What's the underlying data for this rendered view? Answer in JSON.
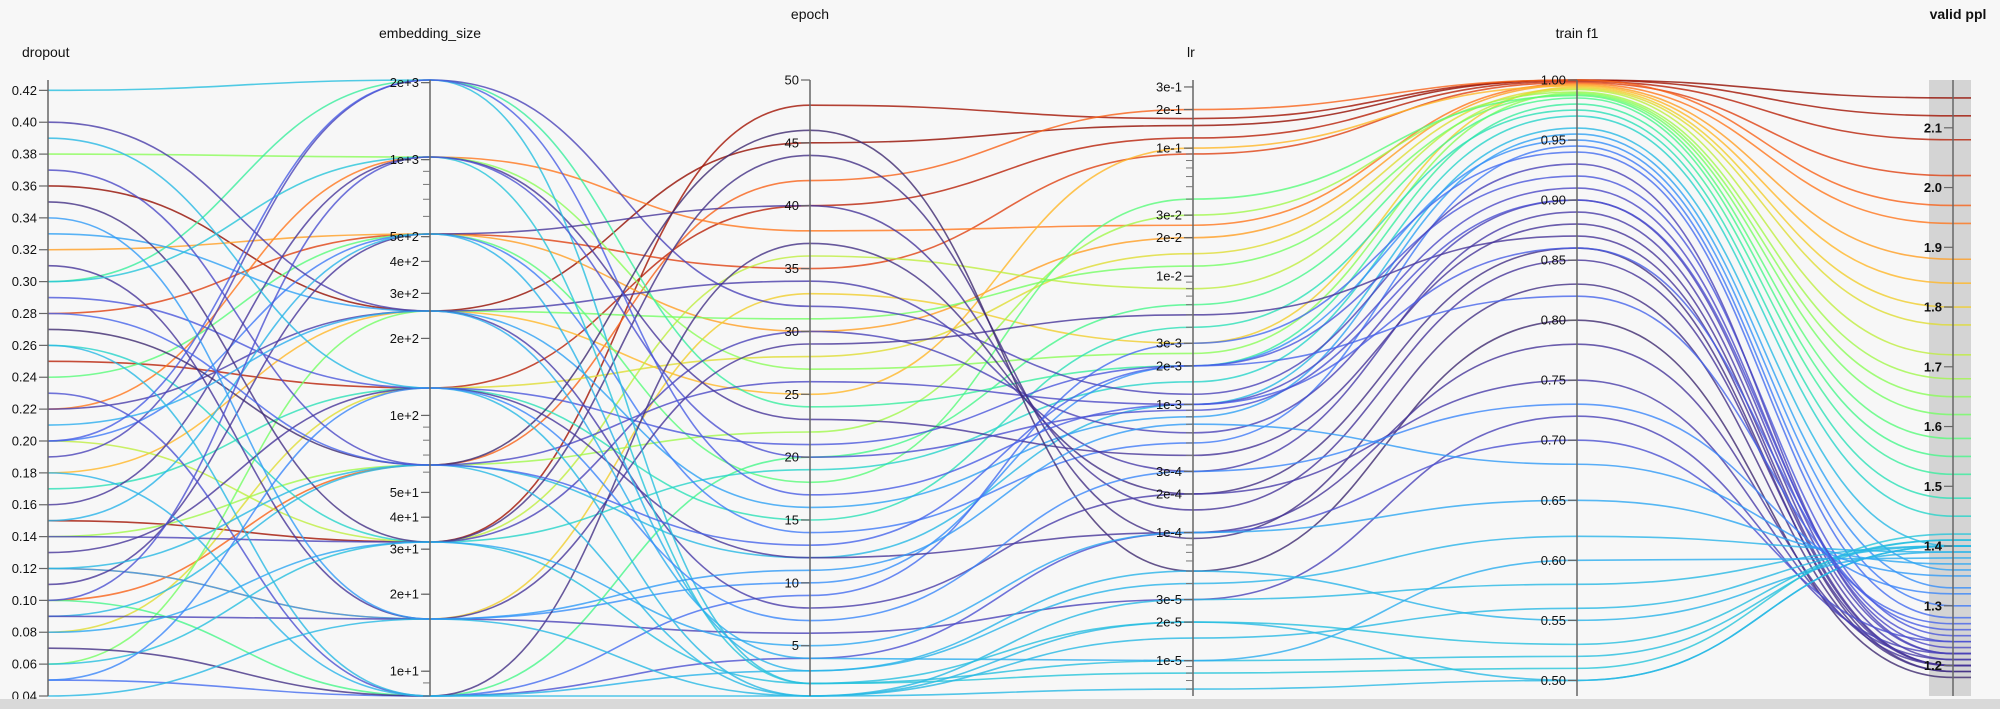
{
  "chart_data": {
    "type": "parallel-coordinates",
    "color_by": "valid ppl",
    "colormap": "turbo",
    "highlight_band_color": "#c8c8c8",
    "axes": [
      {
        "name": "dropout",
        "scale": "linear",
        "range": [
          0.04,
          0.4265
        ],
        "ticks": [
          0.04,
          0.06,
          0.08,
          0.1,
          0.12,
          0.14,
          0.16,
          0.18,
          0.2,
          0.22,
          0.24,
          0.26,
          0.28,
          0.3,
          0.32,
          0.34,
          0.36,
          0.38,
          0.4,
          0.42
        ],
        "tick_labels": [
          "0.04",
          "0.06",
          "0.08",
          "0.10",
          "0.12",
          "0.14",
          "0.16",
          "0.18",
          "0.20",
          "0.22",
          "0.24",
          "0.26",
          "0.28",
          "0.30",
          "0.32",
          "0.34",
          "0.36",
          "0.38",
          "0.40",
          "0.42"
        ]
      },
      {
        "name": "embedding_size",
        "scale": "log",
        "range": [
          8,
          2048
        ],
        "ticks": [
          10,
          20,
          30,
          40,
          50,
          100,
          200,
          300,
          400,
          500,
          1000,
          2000
        ],
        "tick_labels": [
          "1e+1",
          "2e+1",
          "3e+1",
          "4e+1",
          "5e+1",
          "1e+2",
          "2e+2",
          "3e+2",
          "4e+2",
          "5e+2",
          "1e+3",
          "2e+3"
        ]
      },
      {
        "name": "epoch",
        "scale": "linear",
        "range": [
          1,
          50
        ],
        "ticks": [
          5,
          10,
          15,
          20,
          25,
          30,
          35,
          40,
          45,
          50
        ],
        "tick_labels": [
          "5",
          "10",
          "15",
          "20",
          "25",
          "30",
          "35",
          "40",
          "45",
          "50"
        ]
      },
      {
        "name": "lr",
        "scale": "log",
        "range": [
          5.3e-06,
          0.34
        ],
        "ticks": [
          1e-05,
          2e-05,
          3e-05,
          0.0001,
          0.0002,
          0.0003,
          0.001,
          0.002,
          0.003,
          0.01,
          0.02,
          0.03,
          0.1,
          0.2,
          0.3
        ],
        "tick_labels": [
          "1e-5",
          "2e-5",
          "3e-5",
          "1e-4",
          "2e-4",
          "3e-4",
          "1e-3",
          "2e-3",
          "3e-3",
          "1e-2",
          "2e-2",
          "3e-2",
          "1e-1",
          "2e-1",
          "3e-1"
        ]
      },
      {
        "name": "train f1",
        "scale": "linear",
        "range": [
          0.487,
          1.0
        ],
        "ticks": [
          0.5,
          0.55,
          0.6,
          0.65,
          0.7,
          0.75,
          0.8,
          0.85,
          0.9,
          0.95,
          1.0
        ],
        "tick_labels": [
          "0.50",
          "0.55",
          "0.60",
          "0.65",
          "0.70",
          "0.75",
          "0.80",
          "0.85",
          "0.90",
          "0.95",
          "1.00"
        ]
      },
      {
        "name": "valid ppl",
        "scale": "linear",
        "range": [
          1.149,
          2.18
        ],
        "bold": true,
        "brushed": true,
        "ticks": [
          1.2,
          1.3,
          1.4,
          1.5,
          1.6,
          1.7,
          1.8,
          1.9,
          2.0,
          2.1
        ],
        "tick_labels": [
          "1.2",
          "1.3",
          "1.4",
          "1.5",
          "1.6",
          "1.7",
          "1.8",
          "1.9",
          "2.0",
          "2.1"
        ]
      }
    ],
    "rows": [
      [
        0.36,
        256,
        45,
        0.15,
        1.0,
        2.15
      ],
      [
        0.25,
        128,
        40,
        0.12,
        0.999,
        2.08
      ],
      [
        0.15,
        32,
        48,
        0.17,
        1.0,
        2.12
      ],
      [
        0.28,
        512,
        35,
        0.09,
        0.998,
        2.02
      ],
      [
        0.1,
        64,
        42,
        0.2,
        1.0,
        1.97
      ],
      [
        0.22,
        1024,
        38,
        0.025,
        0.997,
        1.94
      ],
      [
        0.32,
        512,
        30,
        0.02,
        0.996,
        1.88
      ],
      [
        0.18,
        256,
        25,
        0.1,
        0.995,
        1.84
      ],
      [
        0.12,
        16,
        33,
        0.003,
        0.994,
        1.8
      ],
      [
        0.08,
        128,
        28,
        0.015,
        0.993,
        1.77
      ],
      [
        0.2,
        32,
        36,
        0.008,
        0.992,
        1.72
      ],
      [
        0.14,
        64,
        22,
        0.03,
        0.99,
        1.68
      ],
      [
        0.38,
        1024,
        27,
        0.0025,
        0.989,
        1.65
      ],
      [
        0.06,
        256,
        31,
        0.012,
        0.988,
        1.62
      ],
      [
        0.24,
        512,
        18,
        0.04,
        0.987,
        1.58
      ],
      [
        0.1,
        8,
        20,
        0.006,
        0.985,
        1.55
      ],
      [
        0.3,
        2048,
        24,
        0.002,
        0.98,
        1.52
      ],
      [
        0.17,
        128,
        15,
        0.004,
        0.975,
        1.48
      ],
      [
        0.26,
        32,
        19,
        0.0015,
        0.97,
        1.45
      ],
      [
        0.09,
        64,
        12,
        0.001,
        0.96,
        1.4
      ],
      [
        0.33,
        256,
        16,
        0.0008,
        0.955,
        1.36
      ],
      [
        0.12,
        16,
        10,
        0.002,
        0.95,
        1.33
      ],
      [
        0.2,
        512,
        14,
        0.0005,
        0.945,
        1.3
      ],
      [
        0.05,
        8,
        9,
        0.003,
        0.94,
        1.28
      ],
      [
        0.29,
        128,
        21,
        0.002,
        0.92,
        1.25
      ],
      [
        0.37,
        64,
        26,
        0.001,
        0.91,
        1.23
      ],
      [
        0.14,
        32,
        30,
        0.0006,
        0.9,
        1.22
      ],
      [
        0.22,
        256,
        34,
        0.0003,
        0.89,
        1.21
      ],
      [
        0.16,
        1024,
        23,
        0.0004,
        0.88,
        1.2
      ],
      [
        0.31,
        16,
        29,
        0.005,
        0.87,
        1.2
      ],
      [
        0.07,
        8,
        37,
        0.0002,
        0.86,
        1.19
      ],
      [
        0.19,
        2048,
        32,
        0.0012,
        0.93,
        1.22
      ],
      [
        0.11,
        512,
        40,
        0.00015,
        0.85,
        1.2
      ],
      [
        0.35,
        32,
        44,
        9e-05,
        0.83,
        1.19
      ],
      [
        0.27,
        64,
        46,
        5e-05,
        0.8,
        1.18
      ],
      [
        0.13,
        128,
        12,
        0.0001,
        0.78,
        1.2
      ],
      [
        0.4,
        256,
        8,
        0.0002,
        0.75,
        1.21
      ],
      [
        0.09,
        16,
        6,
        3e-05,
        0.72,
        1.22
      ],
      [
        0.23,
        8,
        4,
        0.0001,
        0.7,
        1.24
      ],
      [
        0.06,
        32,
        2,
        1e-05,
        0.52,
        1.41
      ],
      [
        0.12,
        64,
        1,
        2e-05,
        0.5,
        1.4
      ],
      [
        0.18,
        8,
        3,
        5e-05,
        0.55,
        1.39
      ],
      [
        0.3,
        1024,
        2,
        8e-06,
        0.51,
        1.42
      ],
      [
        0.04,
        16,
        1,
        3e-05,
        0.58,
        1.4
      ],
      [
        0.21,
        256,
        4,
        1e-05,
        0.6,
        1.38
      ],
      [
        0.42,
        2048,
        2,
        2e-05,
        0.53,
        1.41
      ],
      [
        0.39,
        128,
        1,
        6e-06,
        0.5,
        1.4
      ],
      [
        0.15,
        512,
        3,
        4e-05,
        0.62,
        1.39
      ],
      [
        0.08,
        32,
        5,
        0.0001,
        0.65,
        1.37
      ],
      [
        0.26,
        8,
        1,
        1.5e-05,
        0.56,
        1.4
      ],
      [
        0.34,
        16,
        11,
        0.0007,
        0.68,
        1.35
      ],
      [
        0.05,
        128,
        7,
        0.0003,
        0.73,
        1.32
      ],
      [
        0.28,
        64,
        13,
        0.002,
        0.82,
        1.27
      ],
      [
        0.2,
        2048,
        17,
        0.001,
        0.86,
        1.26
      ],
      [
        0.1,
        1024,
        20,
        0.0009,
        0.9,
        1.24
      ]
    ]
  }
}
